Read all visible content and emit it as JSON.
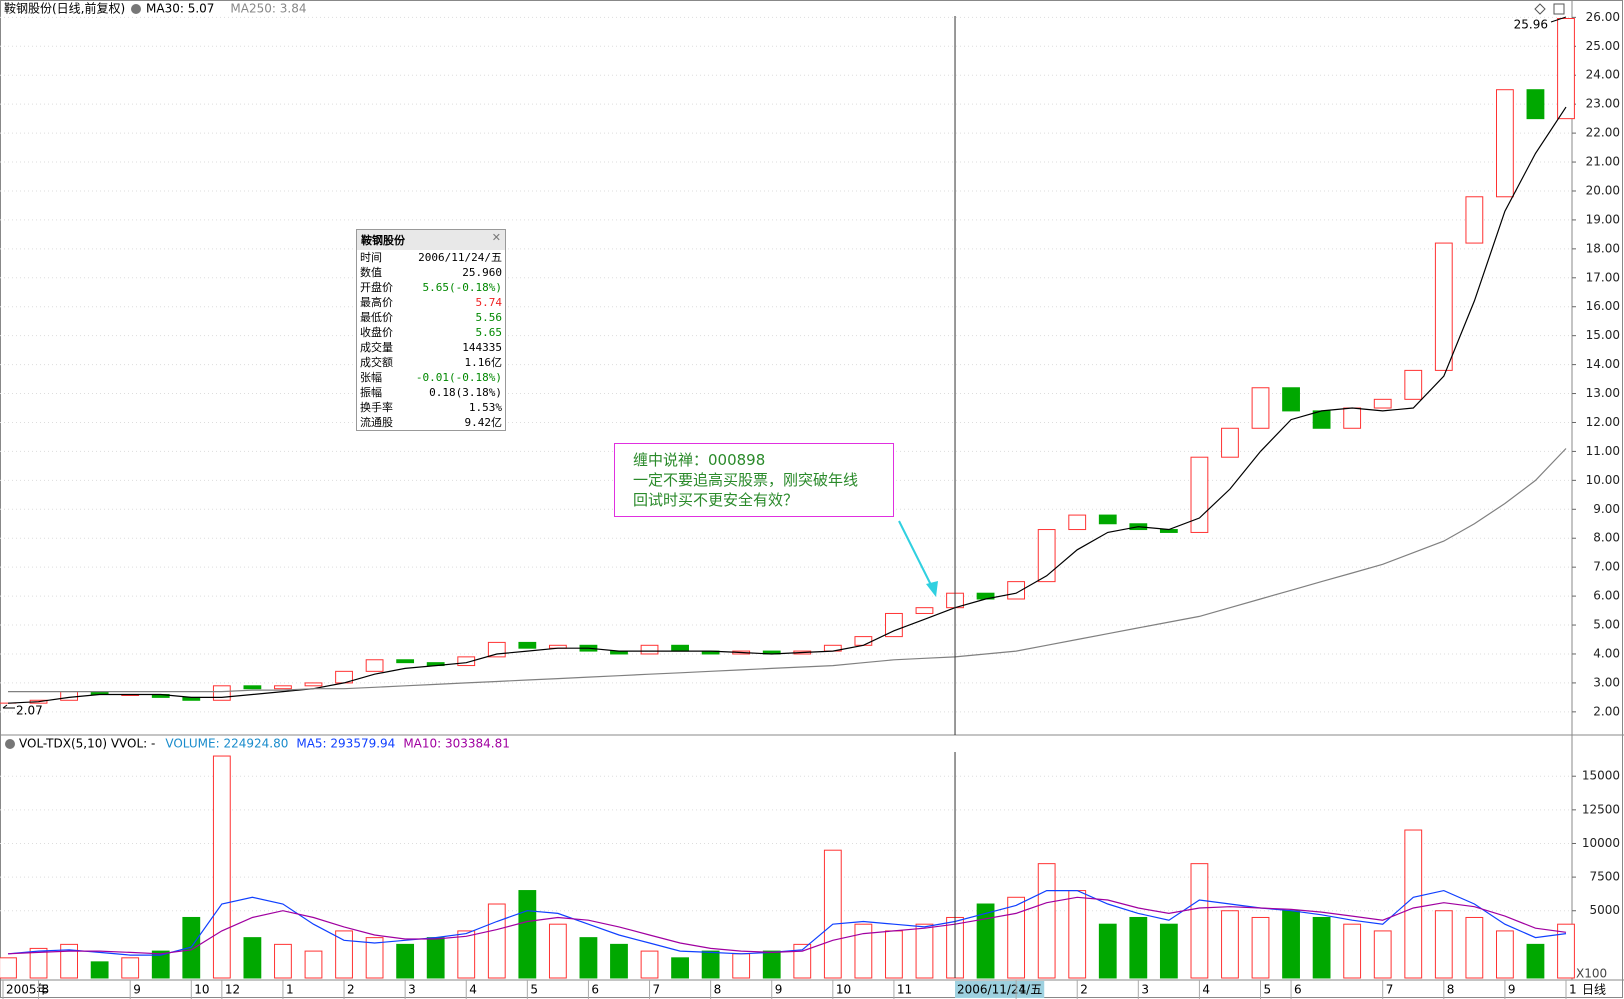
{
  "chart_data": [
    {
      "type": "candlestick",
      "title": "鞍钢股份(日线,前复权)",
      "categories": [
        "2005年",
        "8",
        null,
        null,
        "9",
        null,
        "10",
        "12",
        null,
        "1",
        null,
        "2",
        null,
        "3",
        null,
        "4",
        null,
        "5",
        null,
        "6",
        null,
        "7",
        null,
        "8",
        null,
        "9",
        null,
        "10",
        null,
        "11",
        null,
        "2006/11/24/五",
        null,
        "1",
        null,
        "2",
        null,
        "3",
        null,
        "4",
        null,
        "5",
        "6",
        null,
        null,
        "7",
        null,
        "8",
        null,
        "9",
        null,
        "1"
      ],
      "close": [
        2.3,
        2.4,
        2.7,
        2.6,
        2.6,
        2.5,
        2.4,
        2.9,
        2.8,
        2.9,
        3.0,
        3.4,
        3.8,
        3.7,
        3.6,
        3.9,
        4.4,
        4.2,
        4.3,
        4.1,
        4.0,
        4.3,
        4.1,
        4.0,
        4.1,
        4.0,
        4.1,
        4.3,
        4.6,
        5.4,
        5.6,
        6.1,
        5.9,
        6.5,
        8.3,
        8.8,
        8.5,
        8.3,
        8.2,
        10.8,
        11.8,
        13.2,
        12.4,
        11.8,
        12.5,
        12.8,
        13.8,
        18.2,
        19.8,
        23.5,
        22.5,
        25.96
      ],
      "up_color": "#ff3232",
      "down_color": "#00a800",
      "series": [
        {
          "name": "MA30: 5.07",
          "color": "#000000",
          "values": [
            2.3,
            2.35,
            2.5,
            2.6,
            2.6,
            2.6,
            2.5,
            2.5,
            2.6,
            2.7,
            2.8,
            3.0,
            3.3,
            3.5,
            3.6,
            3.7,
            4.0,
            4.1,
            4.2,
            4.2,
            4.1,
            4.1,
            4.1,
            4.1,
            4.05,
            4.0,
            4.05,
            4.1,
            4.3,
            4.8,
            5.2,
            5.6,
            5.9,
            6.1,
            6.7,
            7.6,
            8.2,
            8.4,
            8.3,
            8.7,
            9.7,
            11.0,
            12.1,
            12.4,
            12.5,
            12.4,
            12.5,
            13.6,
            16.2,
            19.3,
            21.3,
            22.9
          ]
        },
        {
          "name": "MA250: 3.84",
          "color": "#808080",
          "values": [
            2.7,
            2.7,
            2.7,
            2.7,
            2.7,
            2.7,
            2.7,
            2.7,
            2.75,
            2.75,
            2.8,
            2.8,
            2.85,
            2.9,
            2.95,
            3.0,
            3.05,
            3.1,
            3.15,
            3.2,
            3.25,
            3.3,
            3.35,
            3.4,
            3.45,
            3.5,
            3.55,
            3.6,
            3.7,
            3.8,
            3.85,
            3.9,
            4.0,
            4.1,
            4.3,
            4.5,
            4.7,
            4.9,
            5.1,
            5.3,
            5.6,
            5.9,
            6.2,
            6.5,
            6.8,
            7.1,
            7.5,
            7.9,
            8.5,
            9.2,
            10.0,
            11.1
          ]
        }
      ],
      "price_high": 25.96,
      "price_low": 2.07,
      "ylim": [
        1.2,
        26.6
      ],
      "yticks": [
        {
          "value": 2,
          "label": "2.00"
        },
        {
          "value": 3,
          "label": "3.00"
        },
        {
          "value": 4,
          "label": "4.00"
        },
        {
          "value": 5,
          "label": "5.00"
        },
        {
          "value": 6,
          "label": "6.00"
        },
        {
          "value": 7,
          "label": "7.00"
        },
        {
          "value": 8,
          "label": "8.00"
        },
        {
          "value": 9,
          "label": "9.00"
        },
        {
          "value": 10,
          "label": "10.00"
        },
        {
          "value": 11,
          "label": "11.00"
        },
        {
          "value": 12,
          "label": "12.00"
        },
        {
          "value": 13,
          "label": "13.00"
        },
        {
          "value": 14,
          "label": "14.00"
        },
        {
          "value": 15,
          "label": "15.00"
        },
        {
          "value": 16,
          "label": "16.00"
        },
        {
          "value": 17,
          "label": "17.00"
        },
        {
          "value": 18,
          "label": "18.00"
        },
        {
          "value": 19,
          "label": "19.00"
        },
        {
          "value": 20,
          "label": "20.00"
        },
        {
          "value": 21,
          "label": "21.00"
        },
        {
          "value": 22,
          "label": "22.00"
        },
        {
          "value": 23,
          "label": "23.00"
        },
        {
          "value": 24,
          "label": "24.00"
        },
        {
          "value": 25,
          "label": "25.00"
        },
        {
          "value": 26,
          "label": "26.00"
        }
      ],
      "grid": true
    },
    {
      "type": "bar",
      "title": "VOL-TDX(5,10) VVOL: -",
      "unit_label": "X100",
      "series": [
        {
          "name": "VOLUME: 224924.80",
          "color": "#1a8ccc",
          "values": [
            1500,
            2200,
            2500,
            1200,
            1500,
            2000,
            4500,
            16500,
            3000,
            2500,
            2000,
            3500,
            3000,
            2500,
            3000,
            3500,
            5500,
            6500,
            4000,
            3000,
            2500,
            2000,
            1500,
            2000,
            1800,
            2000,
            2500,
            9500,
            4000,
            3500,
            4000,
            4500,
            5500,
            6000,
            8500,
            6500,
            4000,
            4500,
            4000,
            8500,
            5000,
            4500,
            5000,
            4500,
            4000,
            3500,
            11000,
            5000,
            4500,
            3500,
            2500,
            4000
          ]
        },
        {
          "name": "MA5: 293579.94",
          "color": "#1040ff",
          "values": [
            1800,
            2000,
            2100,
            1900,
            1700,
            1700,
            2300,
            5500,
            6000,
            5500,
            4000,
            2800,
            2600,
            2800,
            3000,
            3300,
            4200,
            5000,
            4800,
            4000,
            3200,
            2600,
            2000,
            1900,
            1800,
            1900,
            2100,
            4000,
            4200,
            4000,
            3800,
            4200,
            4800,
            5400,
            6500,
            6500,
            5500,
            4800,
            4300,
            5800,
            5500,
            5200,
            5000,
            4700,
            4300,
            4000,
            6000,
            6500,
            5500,
            4000,
            3000,
            3300
          ]
        },
        {
          "name": "MA10: 303384.81",
          "color": "#a000a0",
          "values": [
            1800,
            1900,
            2000,
            2000,
            1900,
            1800,
            2100,
            3500,
            4500,
            5000,
            4500,
            3800,
            3200,
            2900,
            2900,
            3100,
            3600,
            4200,
            4500,
            4300,
            3800,
            3200,
            2600,
            2200,
            2000,
            1900,
            2000,
            2800,
            3300,
            3500,
            3700,
            4000,
            4400,
            4800,
            5600,
            6000,
            5800,
            5200,
            4800,
            5200,
            5300,
            5200,
            5100,
            4900,
            4600,
            4300,
            5200,
            5600,
            5300,
            4600,
            3700,
            3400
          ]
        }
      ],
      "ylim": [
        0,
        16800
      ],
      "yticks": [
        5000,
        7500,
        10000,
        12500,
        15000
      ],
      "period": "日线"
    }
  ],
  "info_box": {
    "title": "鞍钢股份",
    "rows": [
      {
        "label": "时间",
        "value": "2006/11/24/五",
        "color": "#000000"
      },
      {
        "label": "数值",
        "value": "25.960",
        "color": "#000000"
      },
      {
        "label": "开盘价",
        "value": "5.65(-0.18%)",
        "color": "#008800"
      },
      {
        "label": "最高价",
        "value": "5.74",
        "color": "#ee2222"
      },
      {
        "label": "最低价",
        "value": "5.56",
        "color": "#008800"
      },
      {
        "label": "收盘价",
        "value": "5.65",
        "color": "#008800"
      },
      {
        "label": "成交量",
        "value": "144335",
        "color": "#000000"
      },
      {
        "label": "成交额",
        "value": "1.16亿",
        "color": "#000000"
      },
      {
        "label": "张幅",
        "value": "-0.01(-0.18%)",
        "color": "#008800"
      },
      {
        "label": "振幅",
        "value": "0.18(3.18%)",
        "color": "#000000"
      },
      {
        "label": "换手率",
        "value": "1.53%",
        "color": "#000000"
      },
      {
        "label": "流通股",
        "value": "9.42亿",
        "color": "#000000"
      }
    ]
  },
  "annotation": {
    "lines": [
      "缠中说禅：000898",
      "一定不要追高买股票，刚突破年线",
      "回试时买不更安全有效？"
    ]
  }
}
